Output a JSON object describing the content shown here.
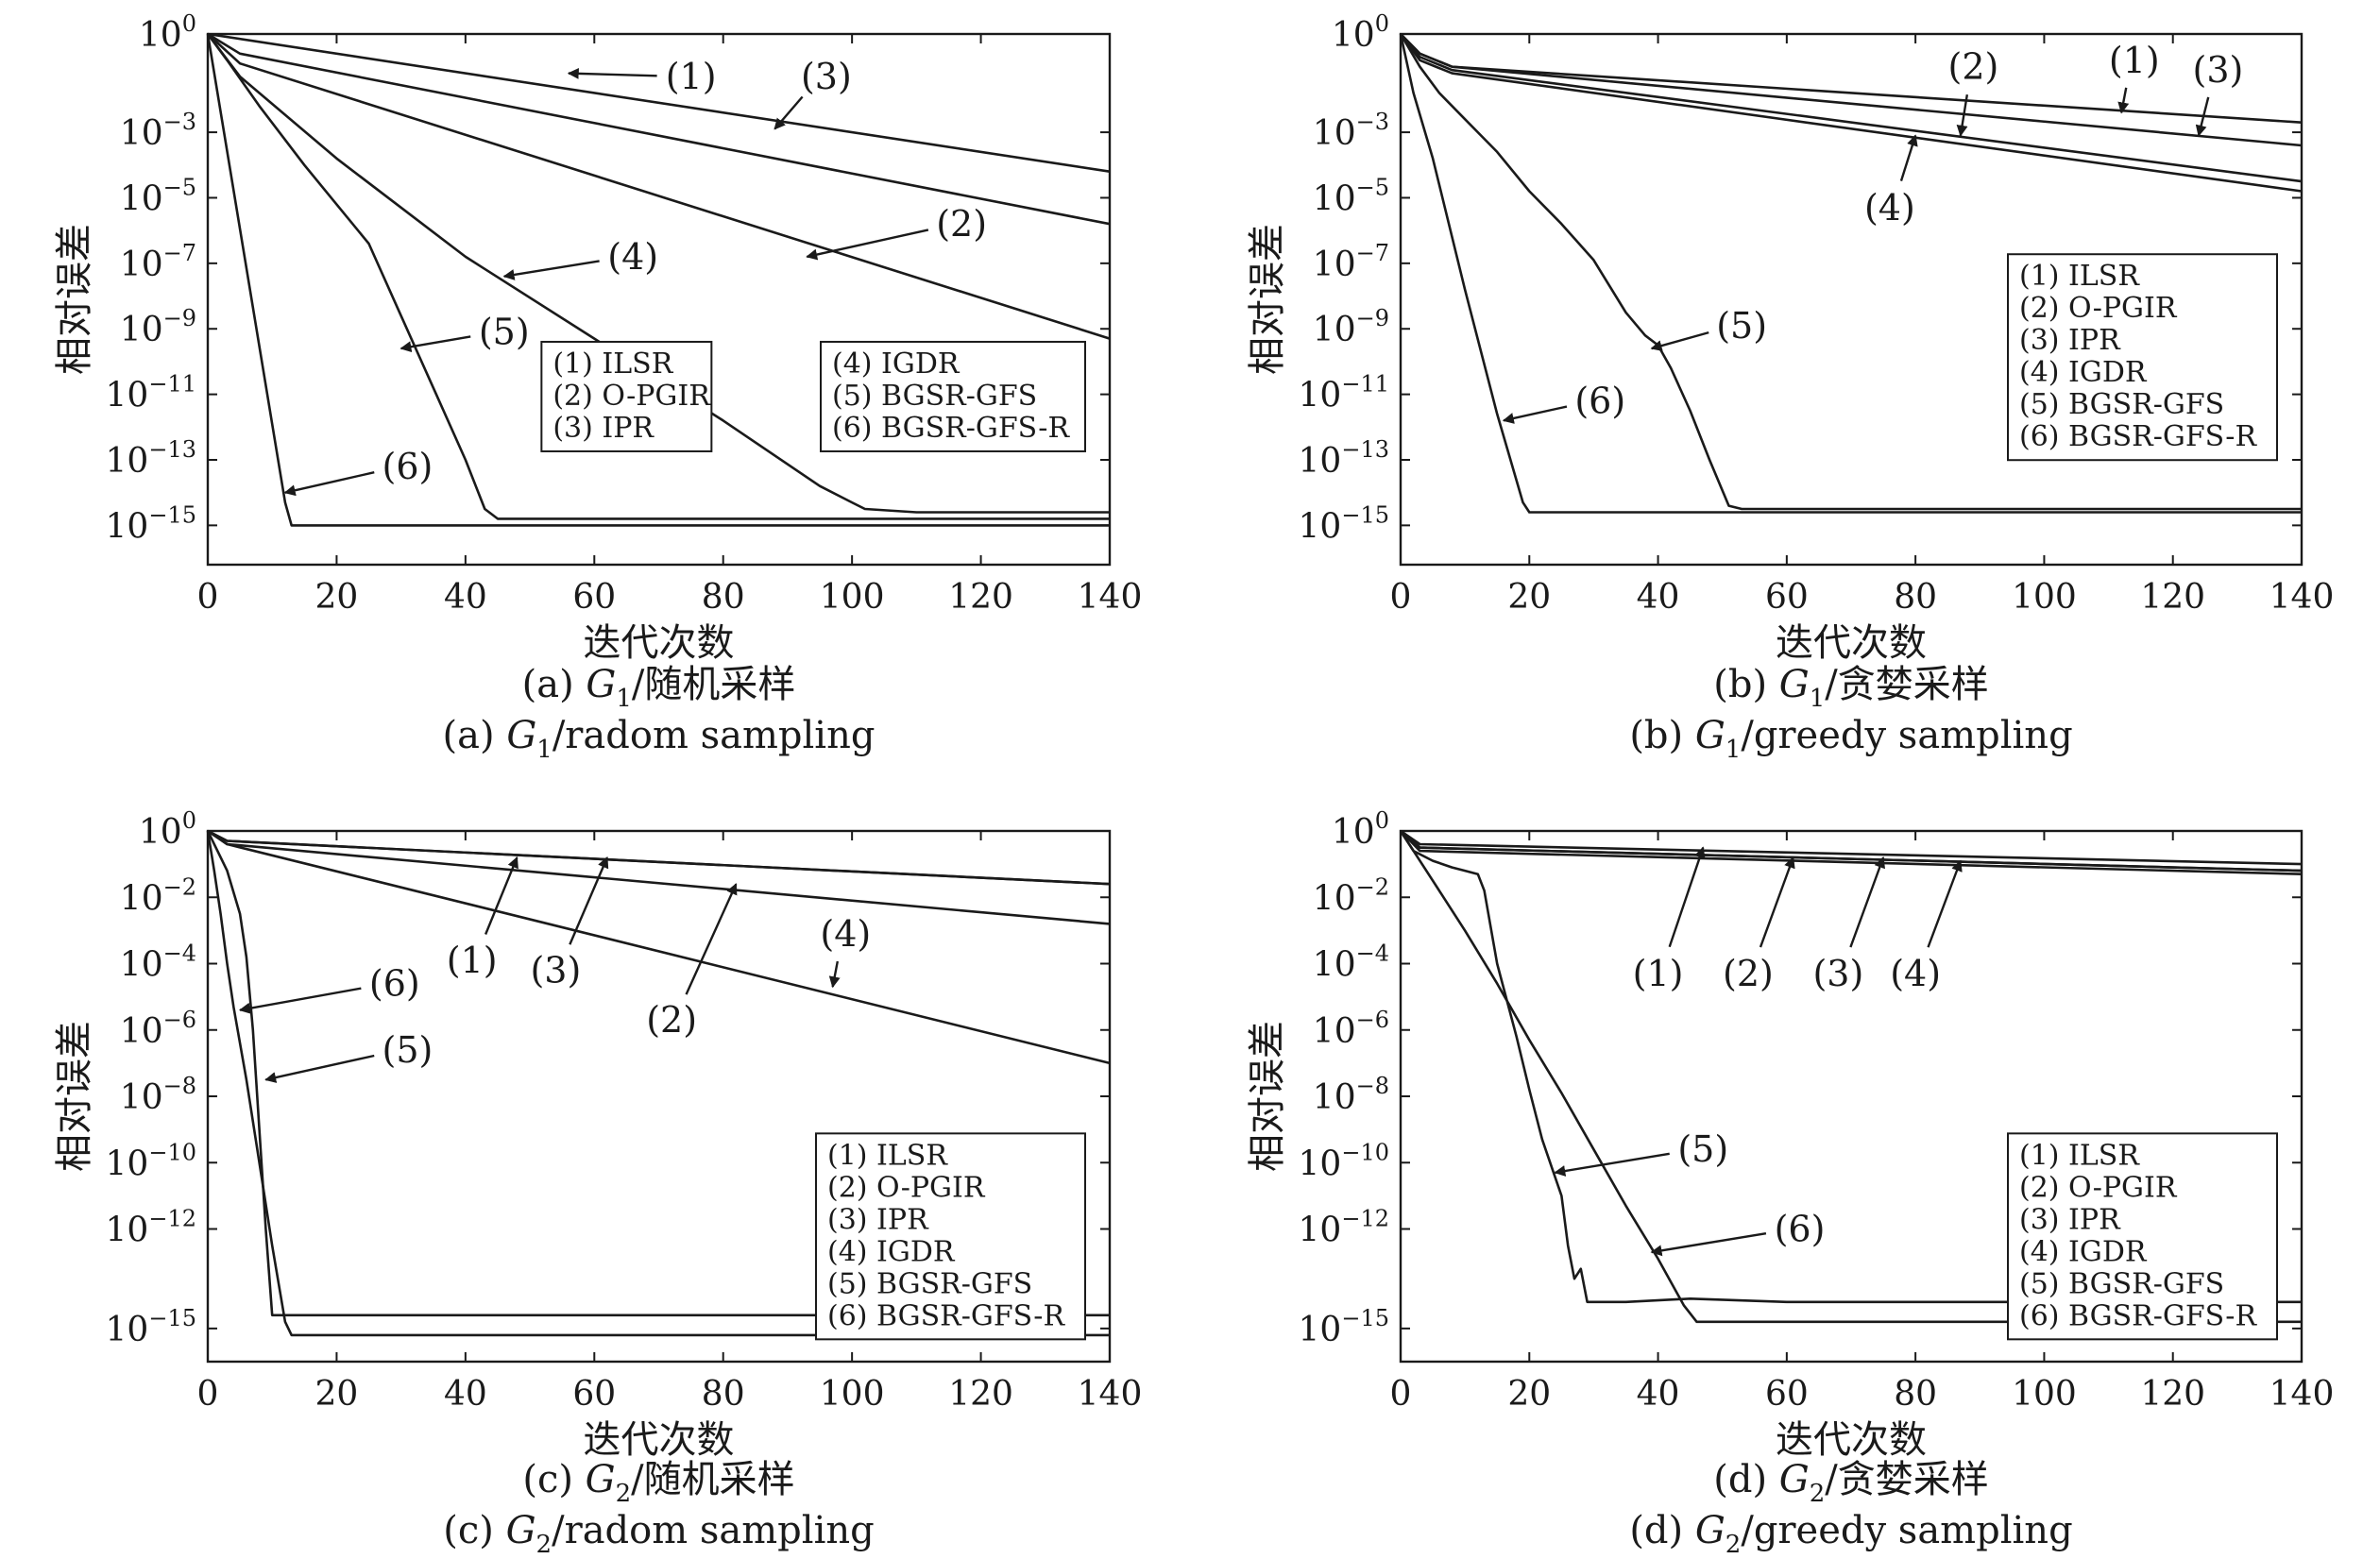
{
  "chart_data": [
    {
      "type": "line",
      "y_scale": "log",
      "xlim": [
        0,
        140
      ],
      "x_ticks": [
        0,
        20,
        40,
        60,
        80,
        100,
        120,
        140
      ],
      "ylim_exp": [
        -16.2,
        0
      ],
      "y_tick_exps": [
        0,
        -3,
        -5,
        -7,
        -9,
        -11,
        -13,
        -15
      ],
      "xlabel": "迭代次数",
      "ylabel": "相对误差",
      "caption_cn": {
        "prefix": "(a) ",
        "var": "G",
        "sub": "1",
        "rest": "/随机采样"
      },
      "caption_en": {
        "prefix": "(a) ",
        "var": "G",
        "sub": "1",
        "rest": "/radom sampling"
      },
      "legend": [
        {
          "placement": "center-middle",
          "entries": [
            "(1) ILSR",
            "(2) O-PGIR",
            "(3) IPR"
          ]
        },
        {
          "placement": "right-middle",
          "entries": [
            "(4) IGDR",
            "(5) BGSR-GFS",
            "(6) BGSR-GFS-R"
          ]
        }
      ],
      "series": [
        {
          "name": "(1) ILSR",
          "x": [
            0,
            140
          ],
          "y_exp": [
            0,
            -4.2
          ]
        },
        {
          "name": "(2) O-PGIR",
          "x": [
            0,
            5,
            140
          ],
          "y_exp": [
            0,
            -0.9,
            -9.3
          ]
        },
        {
          "name": "(3) IPR",
          "x": [
            0,
            5,
            140
          ],
          "y_exp": [
            0,
            -0.6,
            -5.8
          ]
        },
        {
          "name": "(4) IGDR",
          "x": [
            0,
            5,
            20,
            40,
            60,
            80,
            95,
            100,
            102,
            110,
            140
          ],
          "y_exp": [
            0,
            -1.3,
            -3.8,
            -6.8,
            -9.3,
            -11.8,
            -13.8,
            -14.3,
            -14.5,
            -14.6,
            -14.6
          ]
        },
        {
          "name": "(5) BGSR-GFS",
          "x": [
            0,
            3,
            8,
            15,
            20,
            25,
            30,
            35,
            40,
            43,
            45,
            140
          ],
          "y_exp": [
            0,
            -0.8,
            -2.2,
            -4.0,
            -5.2,
            -6.4,
            -8.6,
            -10.8,
            -13.0,
            -14.5,
            -14.8,
            -14.8
          ]
        },
        {
          "name": "(6) BGSR-GFS-R",
          "x": [
            0,
            12,
            13,
            140
          ],
          "y_exp": [
            0,
            -14.3,
            -15.0,
            -15.0
          ]
        }
      ],
      "annotations": [
        {
          "text": "(1)",
          "x": 56,
          "y_exp": -1.2,
          "tx": 75,
          "ty_exp": -1.3
        },
        {
          "text": "(3)",
          "x": 88,
          "y_exp": -2.9,
          "tx": 96,
          "ty_exp": -1.3
        },
        {
          "text": "(2)",
          "x": 93,
          "y_exp": -6.8,
          "tx": 117,
          "ty_exp": -5.8
        },
        {
          "text": "(4)",
          "x": 46,
          "y_exp": -7.4,
          "tx": 66,
          "ty_exp": -6.8
        },
        {
          "text": "(5)",
          "x": 30,
          "y_exp": -9.6,
          "tx": 46,
          "ty_exp": -9.1
        },
        {
          "text": "(6)",
          "x": 12,
          "y_exp": -14.0,
          "tx": 31,
          "ty_exp": -13.2
        }
      ]
    },
    {
      "type": "line",
      "y_scale": "log",
      "xlim": [
        0,
        140
      ],
      "x_ticks": [
        0,
        20,
        40,
        60,
        80,
        100,
        120,
        140
      ],
      "ylim_exp": [
        -16.2,
        0
      ],
      "y_tick_exps": [
        0,
        -3,
        -5,
        -7,
        -9,
        -11,
        -13,
        -15
      ],
      "xlabel": "迭代次数",
      "ylabel": "相对误差",
      "caption_cn": {
        "prefix": "(b) ",
        "var": "G",
        "sub": "1",
        "rest": "/贪婪采样"
      },
      "caption_en": {
        "prefix": "(b) ",
        "var": "G",
        "sub": "1",
        "rest": "/greedy sampling"
      },
      "legend": [
        {
          "placement": "right-middle",
          "entries": [
            "(1) ILSR",
            "(2) O-PGIR",
            "(3) IPR",
            "(4) IGDR",
            "(5) BGSR-GFS",
            "(6) BGSR-GFS-R"
          ]
        }
      ],
      "series": [
        {
          "name": "(1) ILSR",
          "x": [
            0,
            3,
            8,
            140
          ],
          "y_exp": [
            0,
            -0.6,
            -1.0,
            -2.7
          ]
        },
        {
          "name": "(2) O-PGIR",
          "x": [
            0,
            3,
            8,
            140
          ],
          "y_exp": [
            0,
            -0.7,
            -1.1,
            -4.5
          ]
        },
        {
          "name": "(3) IPR",
          "x": [
            0,
            3,
            8,
            140
          ],
          "y_exp": [
            0,
            -0.6,
            -1.0,
            -3.4
          ]
        },
        {
          "name": "(4) IGDR",
          "x": [
            0,
            3,
            8,
            140
          ],
          "y_exp": [
            0,
            -0.8,
            -1.2,
            -4.8
          ]
        },
        {
          "name": "(5) BGSR-GFS",
          "x": [
            0,
            3,
            6,
            10,
            15,
            20,
            25,
            30,
            35,
            38,
            40,
            42,
            45,
            48,
            51,
            53,
            140
          ],
          "y_exp": [
            0,
            -1.0,
            -1.8,
            -2.6,
            -3.6,
            -4.8,
            -5.8,
            -6.9,
            -8.5,
            -9.2,
            -9.5,
            -10.2,
            -11.5,
            -13.0,
            -14.4,
            -14.5,
            -14.5
          ]
        },
        {
          "name": "(6) BGSR-GFS-R",
          "x": [
            0,
            2,
            5,
            10,
            15,
            19,
            20,
            140
          ],
          "y_exp": [
            0,
            -1.8,
            -3.8,
            -7.8,
            -11.6,
            -14.3,
            -14.6,
            -14.6
          ]
        }
      ],
      "annotations": [
        {
          "text": "(1)",
          "x": 112,
          "y_exp": -2.4,
          "tx": 114,
          "ty_exp": -0.8
        },
        {
          "text": "(3)",
          "x": 124,
          "y_exp": -3.1,
          "tx": 127,
          "ty_exp": -1.1
        },
        {
          "text": "(2)",
          "x": 87,
          "y_exp": -3.1,
          "tx": 89,
          "ty_exp": -1.0
        },
        {
          "text": "(4)",
          "x": 80,
          "y_exp": -3.1,
          "tx": 76,
          "ty_exp": -5.3
        },
        {
          "text": "(5)",
          "x": 39,
          "y_exp": -9.6,
          "tx": 53,
          "ty_exp": -8.9
        },
        {
          "text": "(6)",
          "x": 16,
          "y_exp": -11.8,
          "tx": 31,
          "ty_exp": -11.2
        }
      ]
    },
    {
      "type": "line",
      "y_scale": "log",
      "xlim": [
        0,
        140
      ],
      "x_ticks": [
        0,
        20,
        40,
        60,
        80,
        100,
        120,
        140
      ],
      "ylim_exp": [
        -16.0,
        0
      ],
      "y_tick_exps": [
        0,
        -2,
        -4,
        -6,
        -8,
        -10,
        -12,
        -15
      ],
      "xlabel": "迭代次数",
      "ylabel": "相对误差",
      "caption_cn": {
        "prefix": "(c) ",
        "var": "G",
        "sub": "2",
        "rest": "/随机采样"
      },
      "caption_en": {
        "prefix": "(c) ",
        "var": "G",
        "sub": "2",
        "rest": "/radom sampling"
      },
      "legend": [
        {
          "placement": "right-middle",
          "entries": [
            "(1) ILSR",
            "(2) O-PGIR",
            "(3) IPR",
            "(4) IGDR",
            "(5) BGSR-GFS",
            "(6) BGSR-GFS-R"
          ]
        }
      ],
      "series": [
        {
          "name": "(1) ILSR",
          "x": [
            0,
            3,
            140
          ],
          "y_exp": [
            0,
            -0.3,
            -1.6
          ]
        },
        {
          "name": "(2) O-PGIR",
          "x": [
            0,
            3,
            140
          ],
          "y_exp": [
            0,
            -0.4,
            -2.8
          ]
        },
        {
          "name": "(3) IPR",
          "x": [
            0,
            3,
            140
          ],
          "y_exp": [
            0,
            -0.3,
            -1.6
          ]
        },
        {
          "name": "(4) IGDR",
          "x": [
            0,
            3,
            140
          ],
          "y_exp": [
            0,
            -0.4,
            -7.0
          ]
        },
        {
          "name": "(5) BGSR-GFS",
          "x": [
            0,
            3,
            5,
            6,
            7,
            8,
            9,
            10,
            140
          ],
          "y_exp": [
            0,
            -1.2,
            -2.5,
            -3.8,
            -6.0,
            -9.0,
            -12.0,
            -14.6,
            -14.6
          ]
        },
        {
          "name": "(6) BGSR-GFS-R",
          "x": [
            0,
            1,
            2,
            3,
            4,
            6,
            8,
            10,
            12,
            13,
            140
          ],
          "y_exp": [
            0,
            -1.2,
            -2.5,
            -4.0,
            -5.3,
            -7.5,
            -10.0,
            -12.5,
            -14.8,
            -15.2,
            -15.2
          ]
        }
      ],
      "annotations": [
        {
          "text": "(1)",
          "x": 48,
          "y_exp": -0.8,
          "tx": 41,
          "ty_exp": -3.9
        },
        {
          "text": "(3)",
          "x": 62,
          "y_exp": -0.8,
          "tx": 54,
          "ty_exp": -4.2
        },
        {
          "text": "(2)",
          "x": 82,
          "y_exp": -1.6,
          "tx": 72,
          "ty_exp": -5.7
        },
        {
          "text": "(4)",
          "x": 97,
          "y_exp": -4.7,
          "tx": 99,
          "ty_exp": -3.1
        },
        {
          "text": "(6)",
          "x": 5,
          "y_exp": -5.4,
          "tx": 29,
          "ty_exp": -4.6
        },
        {
          "text": "(5)",
          "x": 9,
          "y_exp": -7.5,
          "tx": 31,
          "ty_exp": -6.6
        }
      ]
    },
    {
      "type": "line",
      "y_scale": "log",
      "xlim": [
        0,
        140
      ],
      "x_ticks": [
        0,
        20,
        40,
        60,
        80,
        100,
        120,
        140
      ],
      "ylim_exp": [
        -16.0,
        0
      ],
      "y_tick_exps": [
        0,
        -2,
        -4,
        -6,
        -8,
        -10,
        -12,
        -15
      ],
      "xlabel": "迭代次数",
      "ylabel": "相对误差",
      "caption_cn": {
        "prefix": "(d) ",
        "var": "G",
        "sub": "2",
        "rest": "/贪婪采样"
      },
      "caption_en": {
        "prefix": "(d) ",
        "var": "G",
        "sub": "2",
        "rest": "/greedy sampling"
      },
      "legend": [
        {
          "placement": "right-middle",
          "entries": [
            "(1) ILSR",
            "(2) O-PGIR",
            "(3) IPR",
            "(4) IGDR",
            "(5) BGSR-GFS",
            "(6) BGSR-GFS-R"
          ]
        }
      ],
      "series": [
        {
          "name": "(1) ILSR",
          "x": [
            0,
            3,
            140
          ],
          "y_exp": [
            0,
            -0.4,
            -1.0
          ]
        },
        {
          "name": "(2) O-PGIR",
          "x": [
            0,
            3,
            140
          ],
          "y_exp": [
            0,
            -0.5,
            -1.2
          ]
        },
        {
          "name": "(3) IPR",
          "x": [
            0,
            3,
            140
          ],
          "y_exp": [
            0,
            -0.5,
            -1.2
          ]
        },
        {
          "name": "(4) IGDR",
          "x": [
            0,
            3,
            140
          ],
          "y_exp": [
            0,
            -0.6,
            -1.3
          ]
        },
        {
          "name": "(5) BGSR-GFS",
          "x": [
            0,
            2,
            5,
            8,
            10,
            12,
            13,
            15,
            18,
            20,
            22,
            25,
            26,
            27,
            28,
            29,
            35,
            45,
            60,
            80,
            100,
            120,
            140
          ],
          "y_exp": [
            0,
            -0.6,
            -0.9,
            -1.1,
            -1.2,
            -1.3,
            -1.8,
            -4.0,
            -6.2,
            -7.8,
            -9.3,
            -11.0,
            -12.5,
            -13.5,
            -13.2,
            -14.2,
            -14.2,
            -14.1,
            -14.2,
            -14.2,
            -14.2,
            -14.2,
            -14.2
          ]
        },
        {
          "name": "(6) BGSR-GFS-R",
          "x": [
            0,
            5,
            10,
            15,
            20,
            25,
            30,
            35,
            40,
            44,
            46,
            50,
            70,
            90,
            110,
            140
          ],
          "y_exp": [
            0,
            -1.5,
            -3.0,
            -4.6,
            -6.3,
            -7.9,
            -9.6,
            -11.3,
            -12.9,
            -14.3,
            -14.8,
            -14.8,
            -14.8,
            -14.8,
            -14.8,
            -14.8
          ]
        }
      ],
      "annotations": [
        {
          "text": "(1)",
          "x": 47,
          "y_exp": -0.5,
          "tx": 40,
          "ty_exp": -4.3
        },
        {
          "text": "(2)",
          "x": 61,
          "y_exp": -0.8,
          "tx": 54,
          "ty_exp": -4.3
        },
        {
          "text": "(3)",
          "x": 75,
          "y_exp": -0.8,
          "tx": 68,
          "ty_exp": -4.3
        },
        {
          "text": "(4)",
          "x": 87,
          "y_exp": -0.9,
          "tx": 80,
          "ty_exp": -4.3
        },
        {
          "text": "(5)",
          "x": 24,
          "y_exp": -10.3,
          "tx": 47,
          "ty_exp": -9.6
        },
        {
          "text": "(6)",
          "x": 39,
          "y_exp": -12.7,
          "tx": 62,
          "ty_exp": -12.0
        }
      ]
    }
  ]
}
